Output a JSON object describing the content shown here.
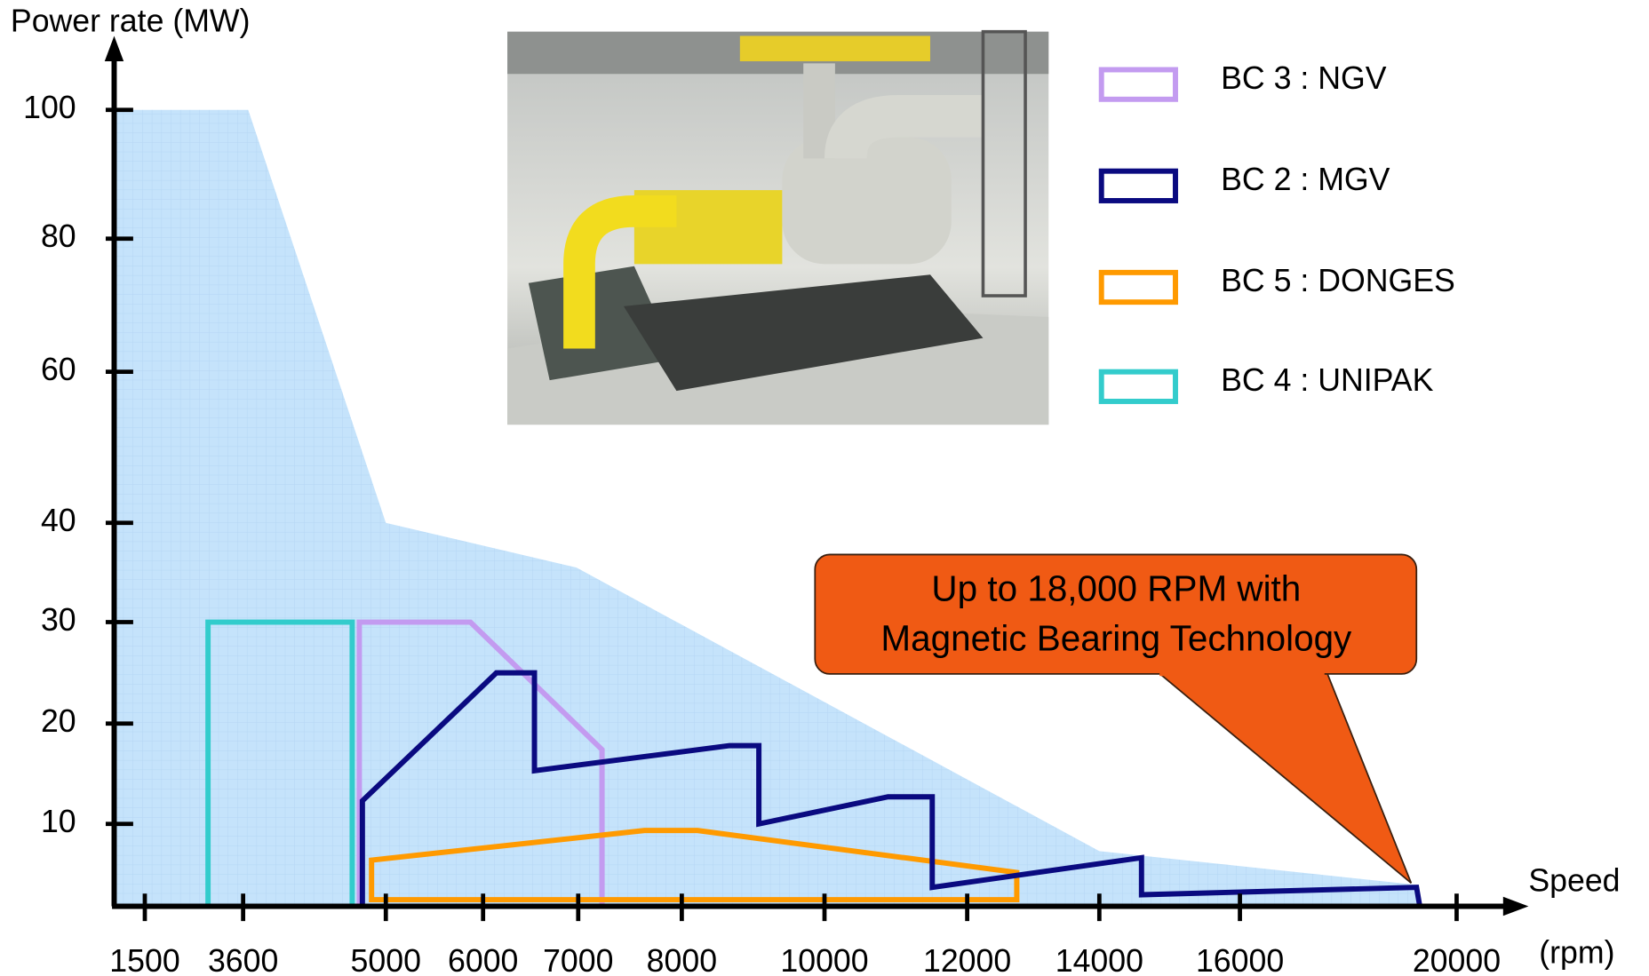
{
  "chart_data": {
    "type": "area",
    "ylabel": "Power rate (MW)",
    "xlabel": "Speed",
    "xunit": "(rpm)",
    "xlim": [
      850,
      21200
    ],
    "xticks": [
      1500,
      3600,
      5000,
      6000,
      7000,
      8000,
      10000,
      12000,
      14000,
      16000,
      20000
    ],
    "ylim": [
      0,
      100
    ],
    "yticks": [
      10,
      20,
      30,
      40,
      60,
      80,
      100
    ],
    "envelope": {
      "color": "#c5e3fb",
      "x": [
        870,
        3650,
        5000,
        6980,
        14000,
        19260,
        19260
      ],
      "values": [
        100,
        100,
        40,
        35.5,
        6.7,
        2.6,
        0
      ]
    },
    "series": [
      {
        "name": "BC 3 : NGV",
        "color": "#c39bf0",
        "x": [
          4740,
          4740,
          5870,
          7230,
          7230
        ],
        "values": [
          0,
          30,
          30,
          17.4,
          0
        ]
      },
      {
        "name": "BC 2 : MGV",
        "color": "#0a0a80",
        "x": [
          4770,
          4770,
          6140,
          6540,
          6540,
          8670,
          9080,
          9080,
          10890,
          11510,
          11510,
          14600,
          14600,
          19260,
          19320
        ],
        "values": [
          0,
          12.3,
          25,
          25,
          15.3,
          17.8,
          17.8,
          10,
          12.7,
          12.7,
          2.3,
          5.9,
          1.4,
          2.3,
          0
        ]
      },
      {
        "name": "BC 5 : DONGES",
        "color": "#ff9a00",
        "x": [
          4860,
          4860,
          7640,
          8220,
          12750,
          12750
        ],
        "values": [
          0.8,
          5.6,
          9.2,
          9.2,
          4.1,
          0.8
        ]
      },
      {
        "name": "BC 4 : UNIPAK",
        "color": "#33cccc",
        "x": [
          2850,
          2850,
          4670,
          4670
        ],
        "values": [
          0,
          30,
          30,
          0
        ]
      }
    ],
    "annotation": [
      "Up to 18,000 RPM with",
      "Magnetic Bearing Technology"
    ]
  }
}
